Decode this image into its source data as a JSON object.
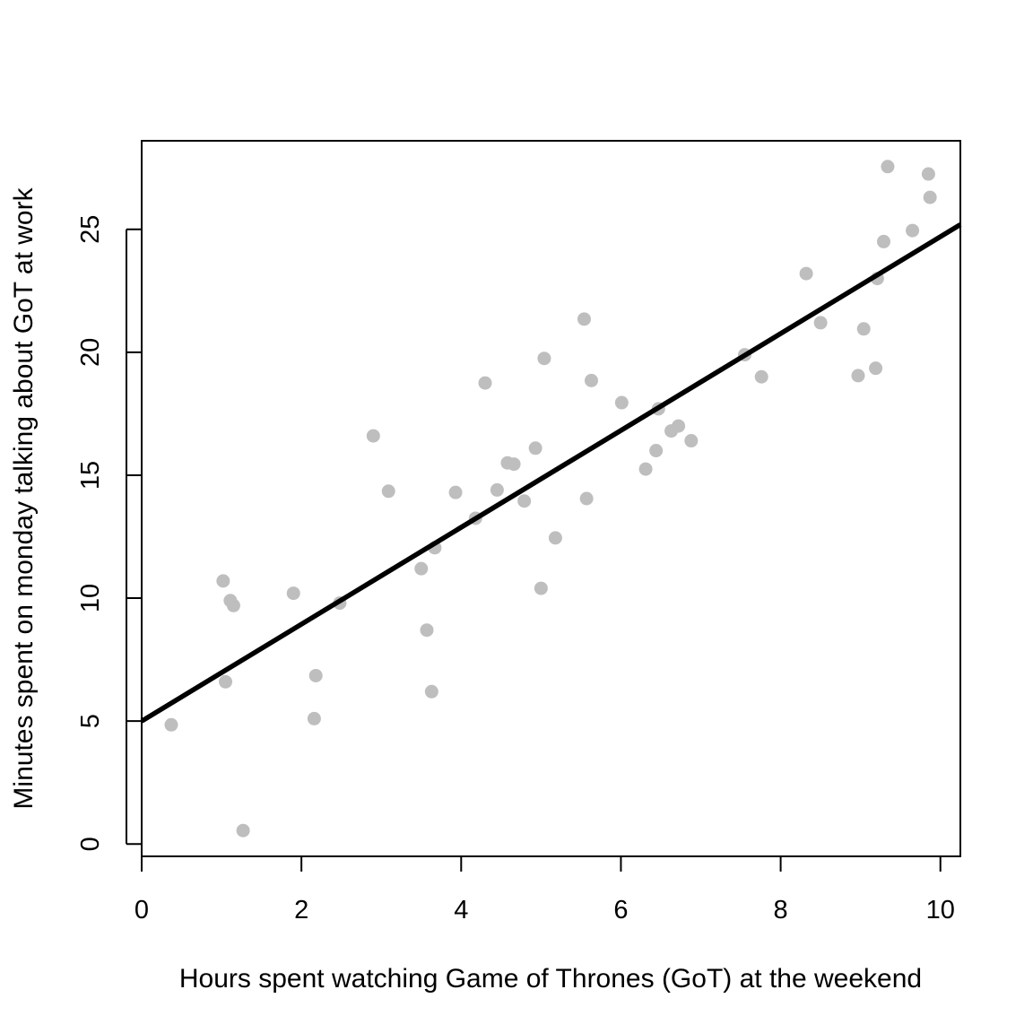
{
  "chart_data": {
    "type": "scatter",
    "title": "",
    "xlabel": "Hours spent watching Game of Thrones (GoT) at the weekend",
    "ylabel": "Minutes spent on monday talking about GoT at work",
    "xlim": [
      0,
      10.25
    ],
    "ylim": [
      -0.5,
      28.6
    ],
    "xticks": [
      0,
      2,
      4,
      6,
      8,
      10
    ],
    "yticks": [
      0,
      5,
      10,
      15,
      20,
      25
    ],
    "xtick_labels": [
      "0",
      "2",
      "4",
      "6",
      "8",
      "10"
    ],
    "ytick_labels": [
      "0",
      "5",
      "10",
      "15",
      "20",
      "25"
    ],
    "grid": false,
    "point_color": "#bebebe",
    "line_color": "#000000",
    "regression_line": {
      "intercept": 5.0,
      "slope": 1.97
    },
    "points": [
      {
        "x": 0.37,
        "y": 4.85
      },
      {
        "x": 1.02,
        "y": 10.7
      },
      {
        "x": 1.05,
        "y": 6.6
      },
      {
        "x": 1.11,
        "y": 9.9
      },
      {
        "x": 1.15,
        "y": 9.7
      },
      {
        "x": 1.27,
        "y": 0.55
      },
      {
        "x": 1.9,
        "y": 10.2
      },
      {
        "x": 2.16,
        "y": 5.1
      },
      {
        "x": 2.18,
        "y": 6.85
      },
      {
        "x": 2.48,
        "y": 9.8
      },
      {
        "x": 2.9,
        "y": 16.6
      },
      {
        "x": 3.09,
        "y": 14.35
      },
      {
        "x": 3.5,
        "y": 11.2
      },
      {
        "x": 3.57,
        "y": 8.7
      },
      {
        "x": 3.63,
        "y": 6.2
      },
      {
        "x": 3.67,
        "y": 12.05
      },
      {
        "x": 3.93,
        "y": 14.3
      },
      {
        "x": 4.18,
        "y": 13.25
      },
      {
        "x": 4.3,
        "y": 18.75
      },
      {
        "x": 4.45,
        "y": 14.4
      },
      {
        "x": 4.58,
        "y": 15.5
      },
      {
        "x": 4.66,
        "y": 15.45
      },
      {
        "x": 4.79,
        "y": 13.95
      },
      {
        "x": 4.93,
        "y": 16.1
      },
      {
        "x": 5.0,
        "y": 10.4
      },
      {
        "x": 5.04,
        "y": 19.75
      },
      {
        "x": 5.18,
        "y": 12.45
      },
      {
        "x": 5.54,
        "y": 21.35
      },
      {
        "x": 5.57,
        "y": 14.05
      },
      {
        "x": 5.63,
        "y": 18.85
      },
      {
        "x": 6.01,
        "y": 17.95
      },
      {
        "x": 6.31,
        "y": 15.25
      },
      {
        "x": 6.44,
        "y": 16.0
      },
      {
        "x": 6.47,
        "y": 17.7
      },
      {
        "x": 6.63,
        "y": 16.8
      },
      {
        "x": 6.72,
        "y": 17.0
      },
      {
        "x": 6.88,
        "y": 16.4
      },
      {
        "x": 7.55,
        "y": 19.9
      },
      {
        "x": 7.76,
        "y": 19.0
      },
      {
        "x": 8.32,
        "y": 23.2
      },
      {
        "x": 8.5,
        "y": 21.2
      },
      {
        "x": 8.97,
        "y": 19.05
      },
      {
        "x": 9.04,
        "y": 20.95
      },
      {
        "x": 9.19,
        "y": 19.35
      },
      {
        "x": 9.21,
        "y": 23.0
      },
      {
        "x": 9.29,
        "y": 24.5
      },
      {
        "x": 9.34,
        "y": 27.55
      },
      {
        "x": 9.65,
        "y": 24.95
      },
      {
        "x": 9.85,
        "y": 27.25
      },
      {
        "x": 9.87,
        "y": 26.3
      }
    ]
  }
}
